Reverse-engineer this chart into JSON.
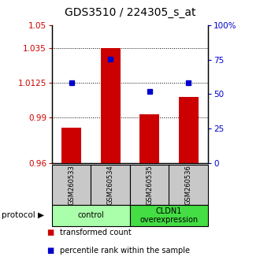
{
  "title": "GDS3510 / 224305_s_at",
  "samples": [
    "GSM260533",
    "GSM260534",
    "GSM260535",
    "GSM260536"
  ],
  "red_bar_values": [
    0.983,
    1.035,
    0.992,
    1.003
  ],
  "blue_dot_values": [
    1.0125,
    1.028,
    1.007,
    1.0125
  ],
  "bar_baseline": 0.96,
  "ylim_left": [
    0.96,
    1.05
  ],
  "yticks_left": [
    0.96,
    0.99,
    1.0125,
    1.035,
    1.05
  ],
  "ytick_labels_left": [
    "0.96",
    "0.99",
    "1.0125",
    "1.035",
    "1.05"
  ],
  "ylim_right": [
    0,
    100
  ],
  "yticks_right": [
    0,
    25,
    50,
    75,
    100
  ],
  "ytick_labels_right": [
    "0",
    "25",
    "50",
    "75",
    "100%"
  ],
  "bar_color": "#cc0000",
  "dot_color": "#0000cc",
  "protocol_groups": [
    {
      "label": "control",
      "samples": [
        0,
        1
      ],
      "color": "#aaffaa"
    },
    {
      "label": "CLDN1\noverexpression",
      "samples": [
        2,
        3
      ],
      "color": "#44dd44"
    }
  ],
  "legend_red": "transformed count",
  "legend_blue": "percentile rank within the sample",
  "protocol_label": "protocol",
  "sample_box_color": "#c8c8c8",
  "title_fontsize": 10,
  "tick_fontsize": 7.5,
  "label_fontsize": 7,
  "bar_width": 0.5
}
